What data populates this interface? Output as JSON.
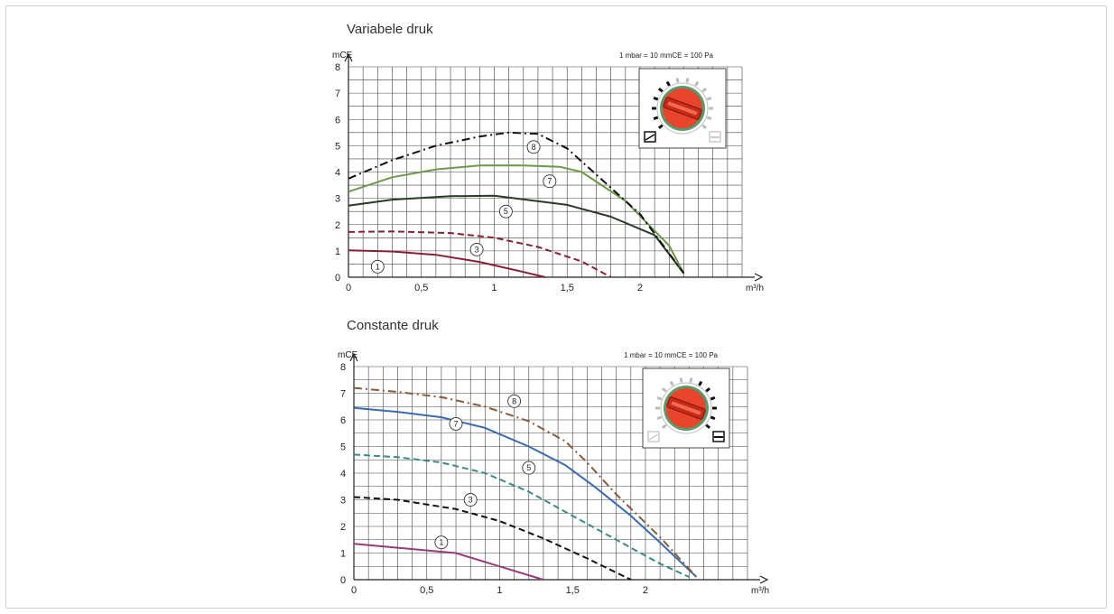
{
  "chart_data": [
    {
      "type": "line",
      "title": "Variabele druk",
      "xlabel": "m³/h",
      "ylabel": "mCE",
      "annotation": "1 mbar = 10 mmCE = 100 Pa",
      "xlim": [
        0,
        2.7
      ],
      "ylim": [
        0,
        8
      ],
      "x_ticks": [
        0,
        0.5,
        1,
        1.5,
        2
      ],
      "x_tick_labels": [
        "0",
        "0,5",
        "1",
        "1,5",
        "2"
      ],
      "y_ticks": [
        0,
        1,
        2,
        3,
        4,
        5,
        6,
        7,
        8
      ],
      "y_tick_labels": [
        "0",
        "1",
        "2",
        "3",
        "4",
        "5",
        "6",
        "7",
        "8"
      ],
      "grid": true,
      "inset": "dial-icon",
      "series": [
        {
          "name": "1",
          "color": "#8a1e32",
          "dash": "solid",
          "x": [
            0,
            0.3,
            0.6,
            0.9,
            1.2,
            1.35
          ],
          "y": [
            1.02,
            0.98,
            0.85,
            0.58,
            0.2,
            0.0
          ],
          "label_pos": [
            0.2,
            0.4
          ]
        },
        {
          "name": "3",
          "color": "#8a1e32",
          "dash": "dashed",
          "x": [
            0,
            0.3,
            0.7,
            1.0,
            1.3,
            1.6,
            1.8
          ],
          "y": [
            1.72,
            1.74,
            1.68,
            1.5,
            1.15,
            0.6,
            0.0
          ],
          "label_pos": [
            0.88,
            1.05
          ]
        },
        {
          "name": "5",
          "color": "#2a3a2a",
          "dash": "solid",
          "x": [
            0,
            0.3,
            0.7,
            1.0,
            1.5,
            1.8,
            2.1,
            2.3
          ],
          "y": [
            2.72,
            2.95,
            3.08,
            3.1,
            2.75,
            2.3,
            1.6,
            0.15
          ],
          "label_pos": [
            1.08,
            2.5
          ]
        },
        {
          "name": "7",
          "color": "#6a9a4a",
          "dash": "solid",
          "x": [
            0,
            0.3,
            0.6,
            0.9,
            1.2,
            1.45,
            1.6,
            1.9,
            2.2,
            2.3
          ],
          "y": [
            3.25,
            3.8,
            4.1,
            4.25,
            4.25,
            4.2,
            4.0,
            2.9,
            1.2,
            0.15
          ],
          "label_pos": [
            1.38,
            3.65
          ]
        },
        {
          "name": "8",
          "color": "#111111",
          "dash": "dashdot",
          "x": [
            0,
            0.3,
            0.6,
            0.9,
            1.1,
            1.3,
            1.5,
            1.7,
            2.0,
            2.3
          ],
          "y": [
            3.75,
            4.45,
            5.0,
            5.35,
            5.5,
            5.45,
            4.9,
            3.9,
            2.4,
            0.15
          ],
          "label_pos": [
            1.27,
            4.95
          ]
        }
      ]
    },
    {
      "type": "line",
      "title": "Constante druk",
      "xlabel": "m³/h",
      "ylabel": "mCE",
      "annotation": "1 mbar = 10 mmCE = 100 Pa",
      "xlim": [
        0,
        2.7
      ],
      "ylim": [
        0,
        8
      ],
      "x_ticks": [
        0,
        0.5,
        1,
        1.5,
        2
      ],
      "x_tick_labels": [
        "0",
        "0,5",
        "1",
        "1,5",
        "2"
      ],
      "y_ticks": [
        0,
        1,
        2,
        3,
        4,
        5,
        6,
        7,
        8
      ],
      "y_tick_labels": [
        "0",
        "1",
        "2",
        "3",
        "4",
        "5",
        "6",
        "7",
        "8"
      ],
      "grid": true,
      "inset": "dial-icon",
      "series": [
        {
          "name": "1",
          "color": "#9a3a7a",
          "dash": "solid",
          "x": [
            0,
            0.3,
            0.7,
            1.0,
            1.3
          ],
          "y": [
            1.35,
            1.2,
            1.0,
            0.5,
            0.0
          ],
          "label_pos": [
            0.6,
            1.4
          ]
        },
        {
          "name": "3",
          "color": "#111111",
          "dash": "dashed",
          "x": [
            0,
            0.3,
            0.7,
            1.0,
            1.3,
            1.6,
            1.9
          ],
          "y": [
            3.1,
            3.0,
            2.65,
            2.2,
            1.55,
            0.8,
            0.0
          ],
          "label_pos": [
            0.8,
            3.0
          ]
        },
        {
          "name": "5",
          "color": "#3a8a8a",
          "dash": "dashed",
          "x": [
            0,
            0.3,
            0.6,
            0.9,
            1.2,
            1.5,
            1.8,
            2.1,
            2.3
          ],
          "y": [
            4.7,
            4.6,
            4.4,
            4.0,
            3.3,
            2.4,
            1.5,
            0.6,
            0.1
          ],
          "label_pos": [
            1.2,
            4.2
          ]
        },
        {
          "name": "7",
          "color": "#3a6ab0",
          "dash": "solid",
          "x": [
            0,
            0.3,
            0.6,
            0.9,
            1.2,
            1.45,
            1.65,
            1.9,
            2.1,
            2.35
          ],
          "y": [
            6.45,
            6.3,
            6.1,
            5.7,
            5.0,
            4.3,
            3.5,
            2.4,
            1.4,
            0.1
          ],
          "label_pos": [
            0.7,
            5.85
          ]
        },
        {
          "name": "8",
          "color": "#8a5a3a",
          "dash": "dashdot",
          "x": [
            0,
            0.3,
            0.6,
            0.9,
            1.2,
            1.45,
            1.6,
            1.8,
            2.1,
            2.35
          ],
          "y": [
            7.2,
            7.05,
            6.85,
            6.5,
            5.95,
            5.2,
            4.4,
            3.2,
            1.6,
            0.1
          ],
          "label_pos": [
            1.1,
            6.7
          ]
        }
      ]
    }
  ],
  "dial": {
    "body_color": "#e8452c",
    "ring_color": "#5a9a6a",
    "slot_color": "#c82a1a"
  }
}
